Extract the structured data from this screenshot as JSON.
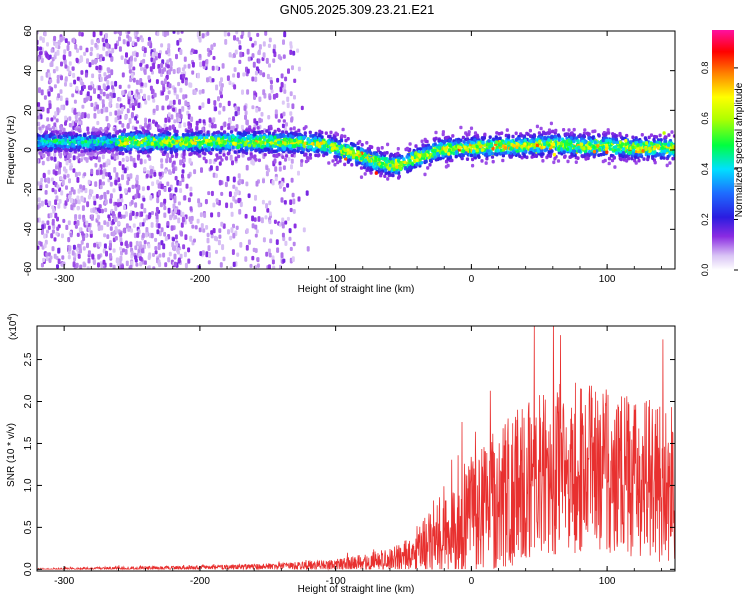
{
  "page": {
    "title": "GN05.2025.309.23.21.E21"
  },
  "colors": {
    "snr_line": "#e8302f",
    "spec_dot_low": "#c7a6ef",
    "spec_dot_mid": "#6a16e6"
  },
  "chart_data": [
    {
      "type": "heatmap",
      "name": "spectrogram",
      "xlabel": "Height of straight line (km)",
      "ylabel": "Frequency (Hz)",
      "xlim": [
        -320,
        150
      ],
      "ylim": [
        -60,
        60
      ],
      "xticks": [
        -300,
        -200,
        -100,
        0,
        100
      ],
      "xtick_labels": [
        "-300",
        "-200",
        "-100",
        "0",
        "100"
      ],
      "yticks": [
        -60,
        -40,
        -20,
        0,
        20,
        40,
        60
      ],
      "ytick_labels": [
        "-60",
        "-40",
        "-20",
        "0",
        "20",
        "40",
        "60"
      ],
      "ridge": {
        "x": [
          -320,
          -260,
          -200,
          -150,
          -110,
          -90,
          -70,
          -55,
          -40,
          -25,
          -10,
          0,
          20,
          40,
          60,
          80,
          100,
          120,
          150
        ],
        "y": [
          4,
          4,
          4,
          4,
          3,
          -1,
          -6,
          -8,
          -4,
          0,
          1,
          1,
          2,
          2,
          3,
          2,
          2,
          1,
          1
        ]
      },
      "colorbar": {
        "label": "Normalized spectral amplitude",
        "lim": [
          0.0,
          0.95
        ],
        "ticks": [
          0.0,
          0.2,
          0.4,
          0.6,
          0.8
        ],
        "tick_labels": [
          "0.0",
          "0.2",
          "0.4",
          "0.6",
          "0.8"
        ]
      }
    },
    {
      "type": "line",
      "name": "snr",
      "xlabel": "Height of straight line (km)",
      "ylabel": "SNR (10 * v/v)",
      "exponent_label": "(x10",
      "exponent_power": "4",
      "exponent_close": ")",
      "xlim": [
        -320,
        150
      ],
      "ylim": [
        -0.02,
        2.9
      ],
      "xticks": [
        -300,
        -200,
        -100,
        0,
        100
      ],
      "xtick_labels": [
        "-300",
        "-200",
        "-100",
        "0",
        "100"
      ],
      "yticks": [
        0.0,
        0.5,
        1.0,
        1.5,
        2.0,
        2.5
      ],
      "ytick_labels": [
        "0.0",
        "0.5",
        "1.0",
        "1.5",
        "2.0",
        "2.5"
      ],
      "envelope": {
        "x": [
          -320,
          -200,
          -150,
          -120,
          -100,
          -80,
          -60,
          -45,
          -35,
          -30,
          -20,
          -10,
          0,
          10,
          20,
          30,
          40,
          60,
          80,
          100,
          120,
          140,
          150
        ],
        "mean": [
          0.0,
          0.02,
          0.03,
          0.04,
          0.05,
          0.08,
          0.12,
          0.18,
          0.25,
          0.35,
          0.45,
          0.55,
          0.65,
          0.75,
          0.85,
          0.95,
          1.05,
          1.15,
          1.2,
          1.15,
          1.1,
          1.05,
          1.0
        ],
        "amp": [
          0.01,
          0.02,
          0.03,
          0.04,
          0.05,
          0.07,
          0.1,
          0.15,
          0.25,
          0.35,
          0.4,
          0.45,
          0.5,
          0.55,
          0.6,
          0.65,
          0.7,
          0.75,
          0.75,
          0.75,
          0.7,
          0.7,
          0.65
        ]
      }
    }
  ]
}
